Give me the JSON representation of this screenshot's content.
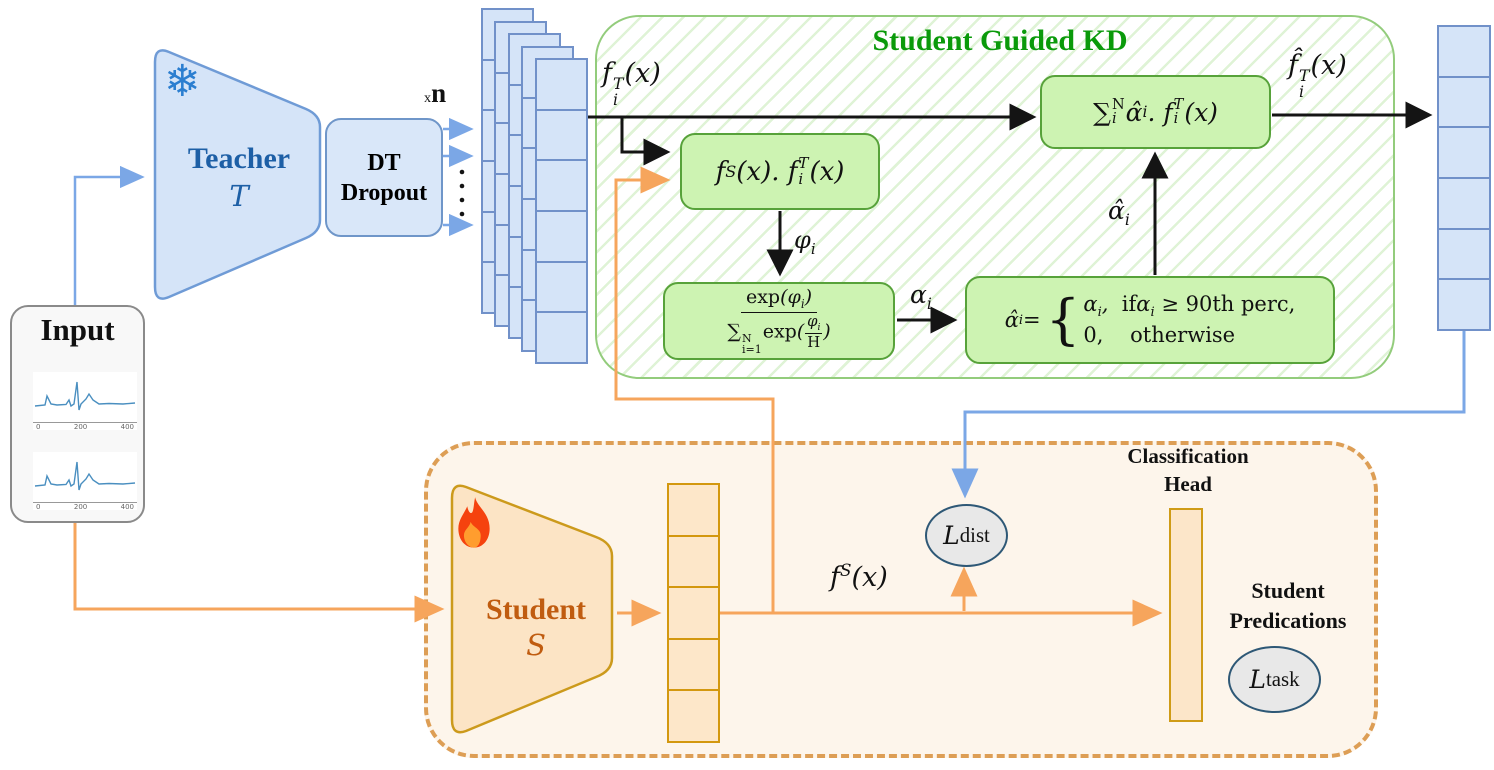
{
  "input_panel": {
    "title": "Input",
    "plot_ticks": [
      "0",
      "200",
      "400"
    ]
  },
  "teacher": {
    "label": "Teacher",
    "symbol": "T"
  },
  "dt_dropout": {
    "line1": "DT",
    "line2": "Dropout"
  },
  "multiplier_html": "<small>x</small><b>n</b>",
  "kd_module": {
    "title": "Student Guided KD",
    "teacher_feat_html": "f<span class='ss'><span><i class='cal'>T</i></span><span>i</span></span>(x)",
    "similarity_html": "f<sup><i class='cal'>S</i></sup>(x). f<span class='ss'><span><i class='cal'>T</i></span><span>i</span></span>(x)",
    "phi_html": "&#966;<sub>i</sub>",
    "softmax_html": "<span class='frac'><span class='num'><span class='up'>exp</span>(&#966;<sub>i</sub>)</span><span class='den'>&#8721;<span class='ss'><span class='up'>N</span><span class='up'>i=1</span></span><span class='up'>exp</span>(<span class='frac fs'><span class='num'>&#966;<sub>i</sub></span><span class='den'><span class='up'>H</span></span></span>)</span></span>",
    "alpha_html": "&#945;<sub>i</sub>",
    "threshold_html": "&#945;&#770;<sub>i</sub> <span class='up'>=</span><span class='brace'>{</span><span class='cases'><span>&#945;<sub>i</sub>,&nbsp;&nbsp;<span class='up'>if</span>&#945;<sub>i</sub> <span class='up'>&#8805; 90th perc,</span></span><span><span class='up'>0,</span>&nbsp;&nbsp;&nbsp;&nbsp;<span class='up'>otherwise</span></span></span>",
    "alpha_hat_html": "&#945;&#770;<sub>i</sub>",
    "weighted_sum_html": "&#8721;<span class='ss'><span class='up'>N</span><span>i</span></span> &#945;&#770;<sub>i</sub>. f<span class='ss'><span><i class='cal'>T</i></span><span>i</span></span>(x)",
    "output_feat_html": "f&#770;<span class='ss'><span><i class='cal'>T</i></span><span>i</span></span>(x)"
  },
  "student_module": {
    "student_label": "Student",
    "student_symbol": "S",
    "student_feat_html": "f<sup><i class='cal'>S</i></sup>(x)",
    "loss_dist_html": "<i class='cal'>L</i><sub class='up'>dist</sub>",
    "loss_task_html": "<i class='cal'>L</i><sub class='up'>task</sub>",
    "cls_head": {
      "line1": "Classification",
      "line2": "Head"
    },
    "predictions": {
      "line1": "Student",
      "line2": "Predications"
    }
  },
  "stacks": {
    "teacher_cells": 6,
    "output_cells": 6,
    "student_cells": 5
  },
  "colors": {
    "kd_border": "#93cc7c",
    "kd_title": "#0a9a0a",
    "green_box_fill": "#cdf3b2",
    "green_box_border": "#57a23a",
    "blue_fill": "#d5e4f8",
    "blue_border": "#7191c9",
    "blue_arrow": "#7ba7e6",
    "orange_arrow": "#f6a55c",
    "orange_fill": "#fde7c9",
    "orange_border": "#d3980f",
    "student_dash": "#dd9e55",
    "loss_border": "#2e5876",
    "teacher_text": "#1d5fa6",
    "student_text": "#c05c10"
  }
}
